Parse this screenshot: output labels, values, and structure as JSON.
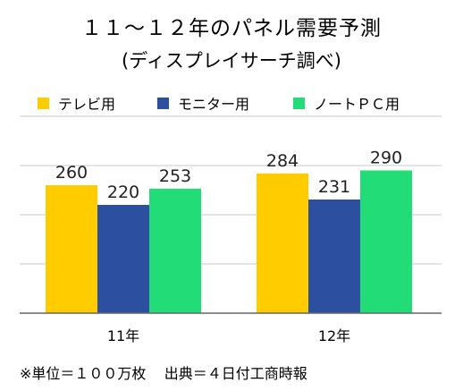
{
  "header": {
    "title": "１１〜１２年のパネル需要予測",
    "subtitle": "(ディスプレイサーチ調べ)"
  },
  "footer": {
    "unit_note": "※単位＝１００万枚",
    "source_note": "出典＝４日付工商時報"
  },
  "colors": {
    "tv": "#ffcc00",
    "monitor": "#2d4fa0",
    "notebook": "#22dd77",
    "grid": "#c8c8c8",
    "axis": "#666666"
  },
  "chart_data": {
    "type": "bar",
    "title": "１１〜１２年のパネル需要予測",
    "subtitle": "(ディスプレイサーチ調べ)",
    "categories": [
      "11年",
      "12年"
    ],
    "series": [
      {
        "name": "テレビ用",
        "values": [
          260,
          284
        ]
      },
      {
        "name": "モニター用",
        "values": [
          220,
          231
        ]
      },
      {
        "name": "ノートＰＣ用",
        "values": [
          253,
          290
        ]
      }
    ],
    "ylim": [
      0,
      400
    ],
    "grid": true,
    "legend_position": "top"
  }
}
